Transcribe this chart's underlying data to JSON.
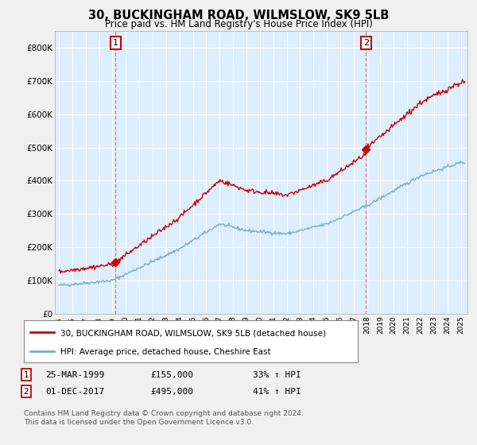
{
  "title": "30, BUCKINGHAM ROAD, WILMSLOW, SK9 5LB",
  "subtitle": "Price paid vs. HM Land Registry's House Price Index (HPI)",
  "ylabel_ticks": [
    "£0",
    "£100K",
    "£200K",
    "£300K",
    "£400K",
    "£500K",
    "£600K",
    "£700K",
    "£800K"
  ],
  "ytick_values": [
    0,
    100000,
    200000,
    300000,
    400000,
    500000,
    600000,
    700000,
    800000
  ],
  "ylim": [
    0,
    850000
  ],
  "sale1_date": 1999.23,
  "sale1_price": 155000,
  "sale2_date": 2017.92,
  "sale2_price": 495000,
  "red_line_color": "#cc0000",
  "blue_line_color": "#7aadcf",
  "vline_color": "#e87878",
  "chart_bg_color": "#ddeeff",
  "fig_bg_color": "#f0f0f0",
  "grid_color": "#ffffff",
  "legend_entry1": "30, BUCKINGHAM ROAD, WILMSLOW, SK9 5LB (detached house)",
  "legend_entry2": "HPI: Average price, detached house, Cheshire East",
  "annot1_date": "25-MAR-1999",
  "annot1_price": "£155,000",
  "annot1_hpi": "33% ↑ HPI",
  "annot2_date": "01-DEC-2017",
  "annot2_price": "£495,000",
  "annot2_hpi": "41% ↑ HPI",
  "footer": "Contains HM Land Registry data © Crown copyright and database right 2024.\nThis data is licensed under the Open Government Licence v3.0.",
  "xlim_start": 1994.7,
  "xlim_end": 2025.5
}
